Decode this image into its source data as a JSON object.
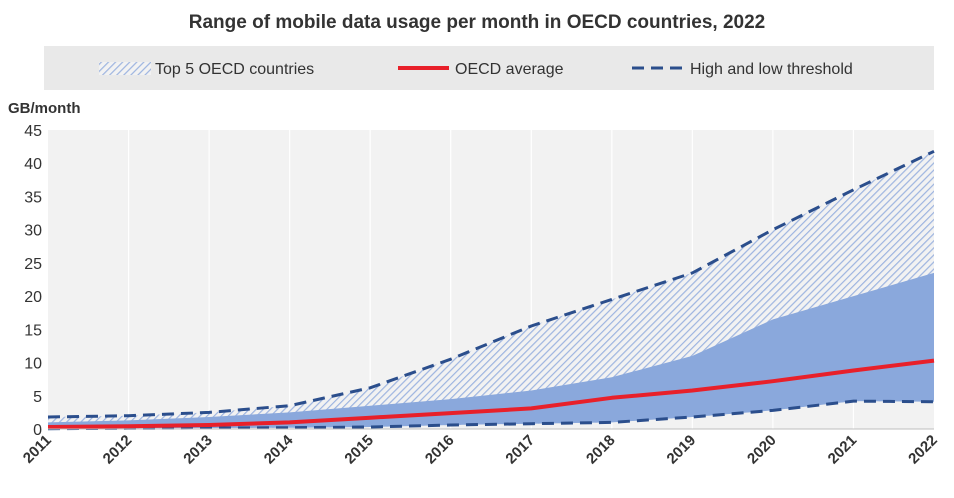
{
  "chart_data": {
    "type": "area",
    "title": "Range of mobile data usage per month in OECD countries, 2022",
    "ylabel": "GB/month",
    "xlabel": "",
    "ylim": [
      0,
      45
    ],
    "yticks": [
      0,
      5,
      10,
      15,
      20,
      25,
      30,
      35,
      40,
      45
    ],
    "grid": "vertical",
    "legend": "top",
    "categories": [
      "2011",
      "2012",
      "2013",
      "2014",
      "2015",
      "2016",
      "2017",
      "2018",
      "2019",
      "2020",
      "2021",
      "2022"
    ],
    "legend_entries": [
      "Top 5 OECD countries",
      "OECD average",
      "High and low threshold"
    ],
    "series": [
      {
        "name": "Top 5 OECD countries",
        "role": "top5-lower",
        "values": [
          1.0,
          1.3,
          1.8,
          2.5,
          3.5,
          4.5,
          5.8,
          7.8,
          11.0,
          16.5,
          20.0,
          23.5
        ]
      },
      {
        "name": "OECD average",
        "role": "average",
        "values": [
          0.3,
          0.4,
          0.6,
          1.0,
          1.7,
          2.4,
          3.1,
          4.7,
          5.8,
          7.2,
          8.8,
          10.3
        ]
      },
      {
        "name": "High and low threshold",
        "role": "high",
        "values": [
          1.8,
          2.0,
          2.5,
          3.5,
          6.2,
          10.5,
          15.5,
          19.5,
          23.5,
          30.0,
          36.0,
          41.8
        ]
      },
      {
        "name": "High and low threshold",
        "role": "low",
        "values": [
          0.05,
          0.1,
          0.15,
          0.2,
          0.3,
          0.6,
          0.8,
          1.0,
          1.8,
          2.8,
          4.2,
          4.1
        ]
      }
    ],
    "colors": {
      "plot_background": "#f2f2f2",
      "legend_background": "#e9e9e9",
      "gridline": "#ffffff",
      "hatch": "#9db4e0",
      "band_fill": "#8aa8dc",
      "average_line": "#e8202a",
      "threshold_line": "#2b4e8c"
    }
  }
}
